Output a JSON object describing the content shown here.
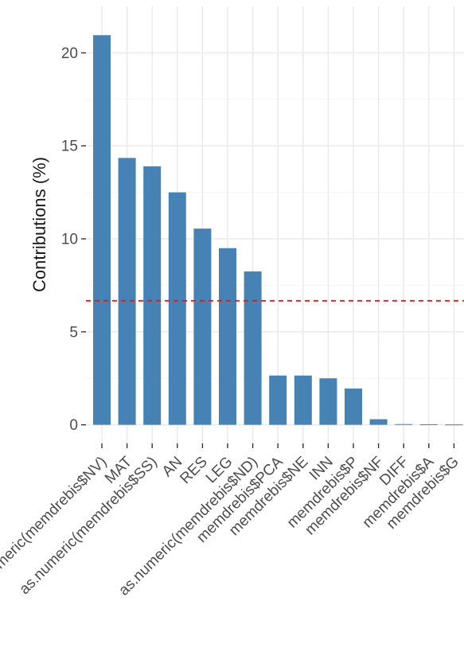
{
  "chart_data": {
    "type": "bar",
    "title": "",
    "xlabel": "",
    "ylabel": "Contributions (%)",
    "ylim": [
      -1,
      22.5
    ],
    "yticks": [
      0,
      5,
      10,
      15,
      20
    ],
    "grid": true,
    "categories": [
      "as.numeric(memdrebis$NV)",
      "MAT",
      "as.numeric(memdrebis$SS)",
      "AN",
      "RES",
      "LEG",
      "as.numeric(memdrebis$ND)",
      "memdrebis$PCA",
      "memdrebis$NE",
      "INN",
      "memdrebis$P",
      "memdrebis$NF",
      "DIFF",
      "memdrebis$A",
      "memdrebis$G"
    ],
    "values": [
      20.95,
      14.35,
      13.9,
      12.5,
      10.55,
      9.5,
      8.25,
      2.65,
      2.65,
      2.5,
      1.95,
      0.3,
      0.04,
      0.03,
      0.02
    ],
    "reference_line": {
      "value": 6.67,
      "style": "dashed"
    },
    "colors": {
      "bar": "#4682B4",
      "reference_line": "#E31A1C",
      "grid_major": "#EBEBEB",
      "grid_minor": "#F5F5F5",
      "background": "#FFFFFF"
    }
  }
}
